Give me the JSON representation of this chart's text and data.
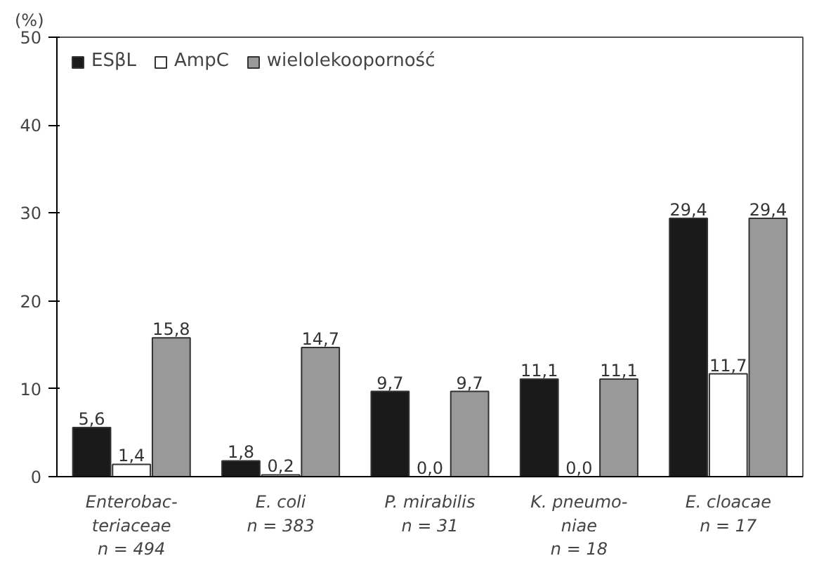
{
  "chart_data": {
    "type": "bar",
    "ylabel": "(%)",
    "categories": [
      "Enterobac-\nteriaceae\nn = 494",
      "E. coli\nn = 383",
      "P. mirabilis\nn = 31",
      "K. pneumo-\nniae\nn = 18",
      "E. cloacae\nn = 17"
    ],
    "series": [
      {
        "name": "ESβL",
        "color": "#1a1a1a",
        "values": [
          5.6,
          1.8,
          9.7,
          11.1,
          29.4
        ],
        "value_labels": [
          "5,6",
          "1,8",
          "9,7",
          "11,1",
          "29,4"
        ]
      },
      {
        "name": "AmpC",
        "color": "#ffffff",
        "values": [
          1.4,
          0.2,
          0.0,
          0.0,
          11.7
        ],
        "value_labels": [
          "1,4",
          "0,2",
          "0,0",
          "0,0",
          "11,7"
        ]
      },
      {
        "name": "wielolekooporność",
        "color": "#999999",
        "values": [
          15.8,
          14.7,
          9.7,
          11.1,
          29.4
        ],
        "value_labels": [
          "15,8",
          "14,7",
          "9,7",
          "11,1",
          "29,4"
        ]
      }
    ],
    "ylim": [
      0,
      50
    ],
    "yticks": [
      0,
      10,
      20,
      30,
      40,
      50
    ],
    "grid": false,
    "legend": "top left"
  }
}
